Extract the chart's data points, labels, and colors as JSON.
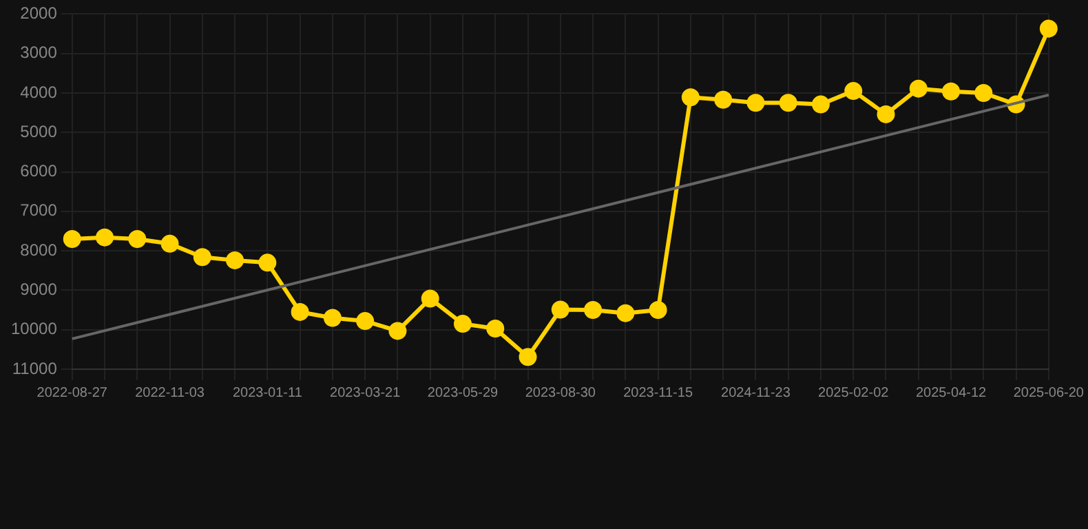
{
  "chart_data": {
    "type": "line",
    "categories": [
      "2022-08-27",
      null,
      null,
      "2022-11-03",
      null,
      null,
      "2023-01-11",
      null,
      null,
      "2023-03-21",
      null,
      null,
      "2023-05-29",
      null,
      null,
      "2023-08-30",
      null,
      null,
      "2023-11-15",
      null,
      null,
      "2024-11-23",
      null,
      null,
      "2025-02-02",
      null,
      null,
      "2025-04-12",
      null,
      null,
      "2025-06-20"
    ],
    "series": [
      {
        "color": "#ffd200",
        "marker": "circle",
        "values": [
          7700,
          7660,
          7700,
          7820,
          8160,
          8240,
          8300,
          9550,
          9700,
          9780,
          10030,
          9210,
          9850,
          9970,
          10690,
          9490,
          9500,
          9580,
          9500,
          4110,
          4170,
          4250,
          4250,
          4290,
          3950,
          4540,
          3890,
          3960,
          4000,
          4290,
          2370
        ]
      },
      {
        "type": "line",
        "color": "#666666",
        "marker": "none",
        "values": [
          10230,
          null,
          null,
          null,
          null,
          null,
          null,
          null,
          null,
          null,
          null,
          null,
          null,
          null,
          null,
          null,
          null,
          null,
          null,
          null,
          null,
          null,
          null,
          null,
          null,
          null,
          null,
          null,
          null,
          null,
          4050
        ]
      }
    ],
    "ylim": [
      11000,
      2000
    ],
    "yticks": [
      2000,
      3000,
      4000,
      5000,
      6000,
      7000,
      8000,
      9000,
      10000,
      11000
    ],
    "grid": true
  }
}
